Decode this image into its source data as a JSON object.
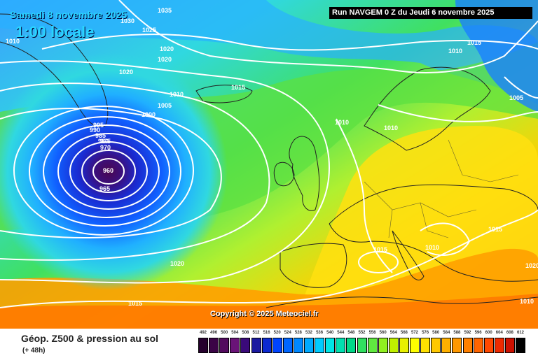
{
  "header": {
    "date": "Samedi 8 novembre 2025",
    "time": "1:00 locale",
    "run": "Run NAVGEM 0 Z du Jeudi 6 novembre 2025"
  },
  "copyright": "Copyright © 2025 Meteociel.fr",
  "footer": {
    "title": "Géop. Z500 & pression au sol",
    "subtitle": "(+ 48h)"
  },
  "legend": {
    "labels": [
      "492",
      "496",
      "500",
      "504",
      "508",
      "512",
      "516",
      "520",
      "524",
      "528",
      "532",
      "536",
      "540",
      "544",
      "548",
      "552",
      "556",
      "560",
      "564",
      "568",
      "572",
      "576",
      "580",
      "584",
      "588",
      "592",
      "596",
      "600",
      "604",
      "608",
      "612"
    ],
    "colors": [
      "#26012e",
      "#3b0446",
      "#520a5e",
      "#6a1378",
      "#3a0a7a",
      "#1b1aa0",
      "#0d2ad0",
      "#0044ff",
      "#0066ff",
      "#0088ff",
      "#00aaff",
      "#00ccff",
      "#00e6e6",
      "#00e0b0",
      "#00d888",
      "#30e060",
      "#60ea40",
      "#90f020",
      "#c0f000",
      "#e8f000",
      "#ffff00",
      "#ffe000",
      "#ffc800",
      "#ffb000",
      "#ff9800",
      "#ff8000",
      "#ff6400",
      "#ff4800",
      "#ee2a00",
      "#cc1000",
      "#000000"
    ]
  },
  "isobar_labels": [
    "1035",
    "1030",
    "1025",
    "1010",
    "1020",
    "1020",
    "1020",
    "1010",
    "1005",
    "1000",
    "995",
    "990",
    "985",
    "980",
    "975",
    "970",
    "960",
    "965",
    "1015",
    "1010",
    "1015",
    "1005",
    "1010",
    "1010",
    "1015",
    "1010",
    "1015",
    "1020",
    "1015",
    "1020",
    "1010"
  ]
}
